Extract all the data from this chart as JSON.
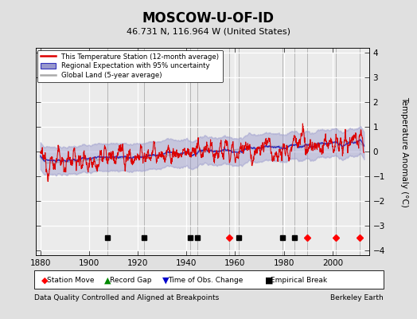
{
  "title": "MOSCOW-U-OF-ID",
  "subtitle": "46.731 N, 116.964 W (United States)",
  "footer_left": "Data Quality Controlled and Aligned at Breakpoints",
  "footer_right": "Berkeley Earth",
  "ylabel": "Temperature Anomaly (°C)",
  "xlim": [
    1878,
    2015
  ],
  "ylim": [
    -4.2,
    4.2
  ],
  "yticks": [
    -4,
    -3,
    -2,
    -1,
    0,
    1,
    2,
    3,
    4
  ],
  "xticks": [
    1880,
    1900,
    1920,
    1940,
    1960,
    1980,
    2000
  ],
  "bg_color": "#e0e0e0",
  "plot_bg_color": "#ebebeb",
  "grid_color": "#ffffff",
  "red_color": "#dd0000",
  "blue_color": "#3333bb",
  "blue_fill": "#9999cc",
  "gray_color": "#aaaaaa",
  "station_moves": [
    1957.5,
    1989.5,
    2001.5,
    2011.0
  ],
  "empirical_breaks": [
    1907.5,
    1922.5,
    1941.5,
    1944.5,
    1961.5,
    1979.5,
    1984.5
  ],
  "legend_labels": [
    "This Temperature Station (12-month average)",
    "Regional Expectation with 95% uncertainty",
    "Global Land (5-year average)"
  ],
  "marker_labels": [
    "Station Move",
    "Record Gap",
    "Time of Obs. Change",
    "Empirical Break"
  ]
}
